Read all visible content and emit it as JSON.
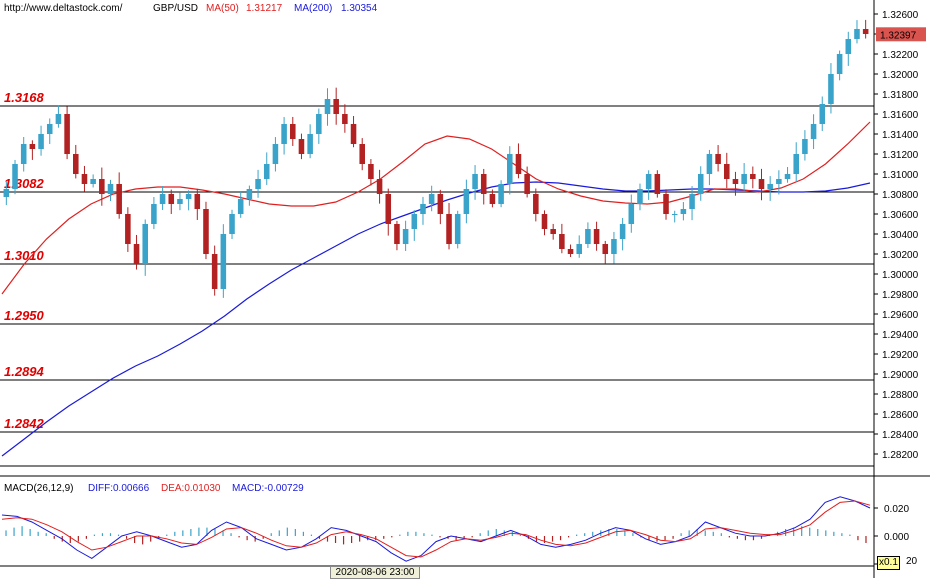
{
  "header": {
    "url": "http://www.deltastock.com/",
    "symbol": "GBP/USD",
    "ma50_label": "MA(50)",
    "ma50_value": "1.31217",
    "ma200_label": "MA(200)",
    "ma200_value": "1.30354"
  },
  "macd_header": {
    "title": "MACD(26,12,9)",
    "diff": "DIFF:0.00666",
    "dea": "DEA:0.01030",
    "macd": "MACD:-0.00729"
  },
  "footer": {
    "timestamp": "2020-08-06 23:00",
    "zoom": "x0.1",
    "zoom_suffix": "20"
  },
  "colors": {
    "bull": "#3aa3c9",
    "bear": "#b22222",
    "ma50": "#e02020",
    "ma200": "#1a1adb",
    "level_text": "#e00000",
    "price_tag_bg": "#d9534f"
  },
  "chart_data": [
    {
      "type": "candlestick",
      "title": "GBP/USD",
      "price_axis": {
        "ylim": [
          1.2808,
          1.3268
        ],
        "tick_labels": [
          "1.32600",
          "1.32400",
          "1.32200",
          "1.32000",
          "1.31800",
          "1.31600",
          "1.31400",
          "1.31200",
          "1.31000",
          "1.30800",
          "1.30600",
          "1.30400",
          "1.30200",
          "1.30000",
          "1.29800",
          "1.29600",
          "1.29400",
          "1.29200",
          "1.29000",
          "1.28800",
          "1.28600",
          "1.28400",
          "1.28200"
        ],
        "ticks": [
          1.326,
          1.324,
          1.322,
          1.32,
          1.318,
          1.316,
          1.314,
          1.312,
          1.31,
          1.308,
          1.306,
          1.304,
          1.302,
          1.3,
          1.298,
          1.296,
          1.294,
          1.292,
          1.29,
          1.288,
          1.286,
          1.284,
          1.282
        ]
      },
      "current_price": "1.32397",
      "levels": [
        {
          "label": "1.3168",
          "value": 1.3168
        },
        {
          "label": "1.3082",
          "value": 1.3082
        },
        {
          "label": "1.3010",
          "value": 1.301
        },
        {
          "label": "1.2950",
          "value": 1.295
        },
        {
          "label": "1.2894",
          "value": 1.2894
        },
        {
          "label": "1.2842",
          "value": 1.2842
        }
      ],
      "series_close": [
        1.3085,
        1.311,
        1.313,
        1.3125,
        1.314,
        1.315,
        1.316,
        1.312,
        1.31,
        1.309,
        1.3095,
        1.308,
        1.309,
        1.306,
        1.303,
        1.301,
        1.305,
        1.307,
        1.308,
        1.307,
        1.3075,
        1.308,
        1.3065,
        1.302,
        1.2985,
        1.304,
        1.306,
        1.3075,
        1.3085,
        1.3095,
        1.311,
        1.313,
        1.315,
        1.3135,
        1.312,
        1.314,
        1.316,
        1.3175,
        1.316,
        1.315,
        1.313,
        1.311,
        1.3095,
        1.308,
        1.305,
        1.303,
        1.3045,
        1.306,
        1.307,
        1.308,
        1.306,
        1.303,
        1.306,
        1.3085,
        1.31,
        1.308,
        1.307,
        1.309,
        1.312,
        1.31,
        1.308,
        1.306,
        1.3045,
        1.304,
        1.3025,
        1.302,
        1.303,
        1.3045,
        1.303,
        1.302,
        1.3035,
        1.305,
        1.307,
        1.3085,
        1.31,
        1.308,
        1.306,
        1.306,
        1.3065,
        1.308,
        1.31,
        1.312,
        1.311,
        1.3095,
        1.309,
        1.31,
        1.3095,
        1.3085,
        1.309,
        1.3095,
        1.31,
        1.312,
        1.3135,
        1.315,
        1.317,
        1.32,
        1.322,
        1.3235,
        1.3245,
        1.324
      ],
      "ma50": [
        1.298,
        1.301,
        1.3035,
        1.3055,
        1.307,
        1.308,
        1.3085,
        1.3087,
        1.3087,
        1.3084,
        1.308,
        1.3075,
        1.307,
        1.3068,
        1.3068,
        1.3072,
        1.3082,
        1.3095,
        1.3112,
        1.313,
        1.3138,
        1.3135,
        1.3125,
        1.311,
        1.3095,
        1.3085,
        1.3078,
        1.3073,
        1.3071,
        1.307,
        1.3072,
        1.3078,
        1.3085,
        1.3085,
        1.3082,
        1.3086,
        1.3095,
        1.311,
        1.313,
        1.3152
      ],
      "ma200": [
        1.2818,
        1.2835,
        1.2852,
        1.2868,
        1.2882,
        1.2896,
        1.2908,
        1.2918,
        1.293,
        1.2943,
        1.2958,
        1.2975,
        1.299,
        1.3004,
        1.3016,
        1.3028,
        1.304,
        1.305,
        1.3058,
        1.3066,
        1.3074,
        1.3081,
        1.3087,
        1.3091,
        1.3092,
        1.3091,
        1.3088,
        1.3085,
        1.3083,
        1.3083,
        1.3084,
        1.3085,
        1.3085,
        1.3084,
        1.3083,
        1.3082,
        1.3082,
        1.3083,
        1.3086,
        1.3091
      ]
    },
    {
      "type": "bar",
      "title": "MACD(26,12,9)",
      "ylim": [
        -0.02,
        0.03
      ],
      "tick_labels": [
        "0.020",
        "0.000",
        "-0.020"
      ],
      "histogram": [
        0.004,
        0.006,
        0.007,
        0.005,
        0.003,
        0.002,
        -0.002,
        -0.004,
        -0.005,
        -0.004,
        -0.002,
        0.001,
        0.002,
        0.002,
        0.001,
        -0.002,
        -0.005,
        -0.006,
        -0.004,
        -0.002,
        0.001,
        0.003,
        0.004,
        0.005,
        0.006,
        0.006,
        0.005,
        0.004,
        0.002,
        -0.001,
        -0.003,
        -0.004,
        -0.002,
        0.002,
        0.004,
        0.006,
        0.005,
        0.003,
        0.001,
        -0.002,
        -0.004,
        -0.005,
        -0.006,
        -0.005,
        -0.004,
        -0.003,
        -0.003,
        -0.002,
        -0.001,
        0.001,
        0.003,
        0.003,
        0.002,
        0.001,
        -0.001,
        -0.002,
        -0.003,
        -0.002,
        -0.001,
        0.002,
        0.004,
        0.005,
        0.004,
        0.003,
        0.001,
        -0.002,
        -0.004,
        -0.005,
        -0.004,
        -0.003,
        -0.001,
        0.001,
        0.002,
        0.003,
        0.004,
        0.005,
        0.005,
        0.004,
        0.002,
        -0.001,
        -0.003,
        -0.004,
        -0.003,
        -0.002,
        0.002,
        0.004,
        0.005,
        0.004,
        0.003,
        0.002,
        -0.001,
        -0.002,
        -0.003,
        -0.003,
        -0.002,
        0.001,
        0.003,
        0.005,
        0.006,
        0.007,
        0.006,
        0.005,
        0.004,
        0.003,
        0.002,
        0.001,
        -0.003,
        -0.005
      ],
      "diff": [
        0.015,
        0.014,
        0.01,
        0.004,
        -0.002,
        -0.01,
        -0.016,
        -0.008,
        0.0,
        0.003,
        0.0,
        -0.004,
        -0.008,
        -0.006,
        0.004,
        0.01,
        0.006,
        -0.002,
        -0.006,
        -0.01,
        -0.008,
        -0.002,
        0.006,
        0.004,
        0.0,
        -0.004,
        -0.012,
        -0.018,
        -0.014,
        -0.004,
        0.0,
        -0.002,
        -0.004,
        0.0,
        0.004,
        0.0,
        -0.006,
        -0.008,
        -0.006,
        -0.003,
        0.002,
        0.006,
        0.004,
        -0.002,
        -0.006,
        -0.004,
        0.0,
        0.01,
        0.006,
        0.002,
        0.0,
        0.0,
        0.002,
        0.006,
        0.012,
        0.024,
        0.028,
        0.025,
        0.02
      ],
      "dea": [
        0.012,
        0.013,
        0.012,
        0.008,
        0.003,
        -0.004,
        -0.01,
        -0.008,
        -0.004,
        0.0,
        0.0,
        -0.002,
        -0.005,
        -0.006,
        -0.001,
        0.005,
        0.006,
        0.002,
        -0.003,
        -0.007,
        -0.008,
        -0.005,
        0.001,
        0.003,
        0.001,
        -0.002,
        -0.008,
        -0.014,
        -0.015,
        -0.01,
        -0.004,
        -0.002,
        -0.003,
        -0.001,
        0.002,
        0.001,
        -0.003,
        -0.006,
        -0.007,
        -0.005,
        -0.001,
        0.003,
        0.004,
        0.001,
        -0.003,
        -0.004,
        -0.002,
        0.005,
        0.006,
        0.004,
        0.002,
        0.001,
        0.001,
        0.004,
        0.008,
        0.017,
        0.024,
        0.025,
        0.022
      ]
    }
  ]
}
